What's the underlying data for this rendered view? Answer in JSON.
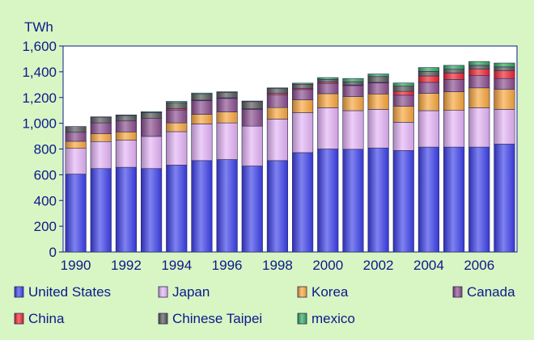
{
  "chart_data": {
    "type": "bar",
    "stacked": true,
    "unit_label": "TWh",
    "x": [
      1990,
      1991,
      1992,
      1993,
      1994,
      1995,
      1996,
      1997,
      1998,
      1999,
      2000,
      2001,
      2002,
      2003,
      2004,
      2005,
      2006,
      2007
    ],
    "x_tick_labels": [
      "1990",
      "1992",
      "1994",
      "1996",
      "1998",
      "2000",
      "2002",
      "2004",
      "2006"
    ],
    "y_ticks": [
      "0",
      "200",
      "400",
      "600",
      "800",
      "1,000",
      "1,200",
      "1,400",
      "1,600"
    ],
    "ylim": [
      0,
      1600
    ],
    "grid": false,
    "legend_position": "bottom",
    "series": [
      {
        "name": "United States",
        "color": "#3a3ee8",
        "values": [
          605,
          648,
          658,
          648,
          675,
          710,
          718,
          668,
          710,
          772,
          800,
          798,
          808,
          788,
          815,
          815,
          815,
          838
        ]
      },
      {
        "name": "Japan",
        "color": "#e3b2f5",
        "values": [
          200,
          210,
          210,
          250,
          260,
          285,
          285,
          310,
          322,
          310,
          320,
          300,
          300,
          220,
          283,
          285,
          305,
          270
        ]
      },
      {
        "name": "Korea",
        "color": "#f7a43a",
        "values": [
          55,
          60,
          65,
          0,
          68,
          75,
          85,
          0,
          90,
          100,
          110,
          110,
          120,
          125,
          135,
          145,
          155,
          155
        ]
      },
      {
        "name": "Canada",
        "color": "#884b8c",
        "values": [
          70,
          85,
          85,
          140,
          100,
          105,
          105,
          130,
          100,
          80,
          80,
          85,
          85,
          85,
          85,
          95,
          95,
          85
        ]
      },
      {
        "name": "China",
        "color": "#f0222e",
        "values": [
          0,
          0,
          0,
          0,
          10,
          5,
          5,
          5,
          10,
          10,
          10,
          5,
          5,
          30,
          50,
          50,
          50,
          60
        ]
      },
      {
        "name": "Chinese Taipei",
        "color": "#555555",
        "values": [
          45,
          45,
          42,
          45,
          47,
          45,
          42,
          55,
          38,
          30,
          20,
          25,
          45,
          40,
          35,
          30,
          30,
          30
        ]
      },
      {
        "name": "mexico",
        "color": "#2ea85a",
        "values": [
          0,
          2,
          5,
          7,
          10,
          10,
          5,
          5,
          5,
          10,
          15,
          25,
          20,
          25,
          30,
          30,
          30,
          30
        ]
      }
    ]
  }
}
